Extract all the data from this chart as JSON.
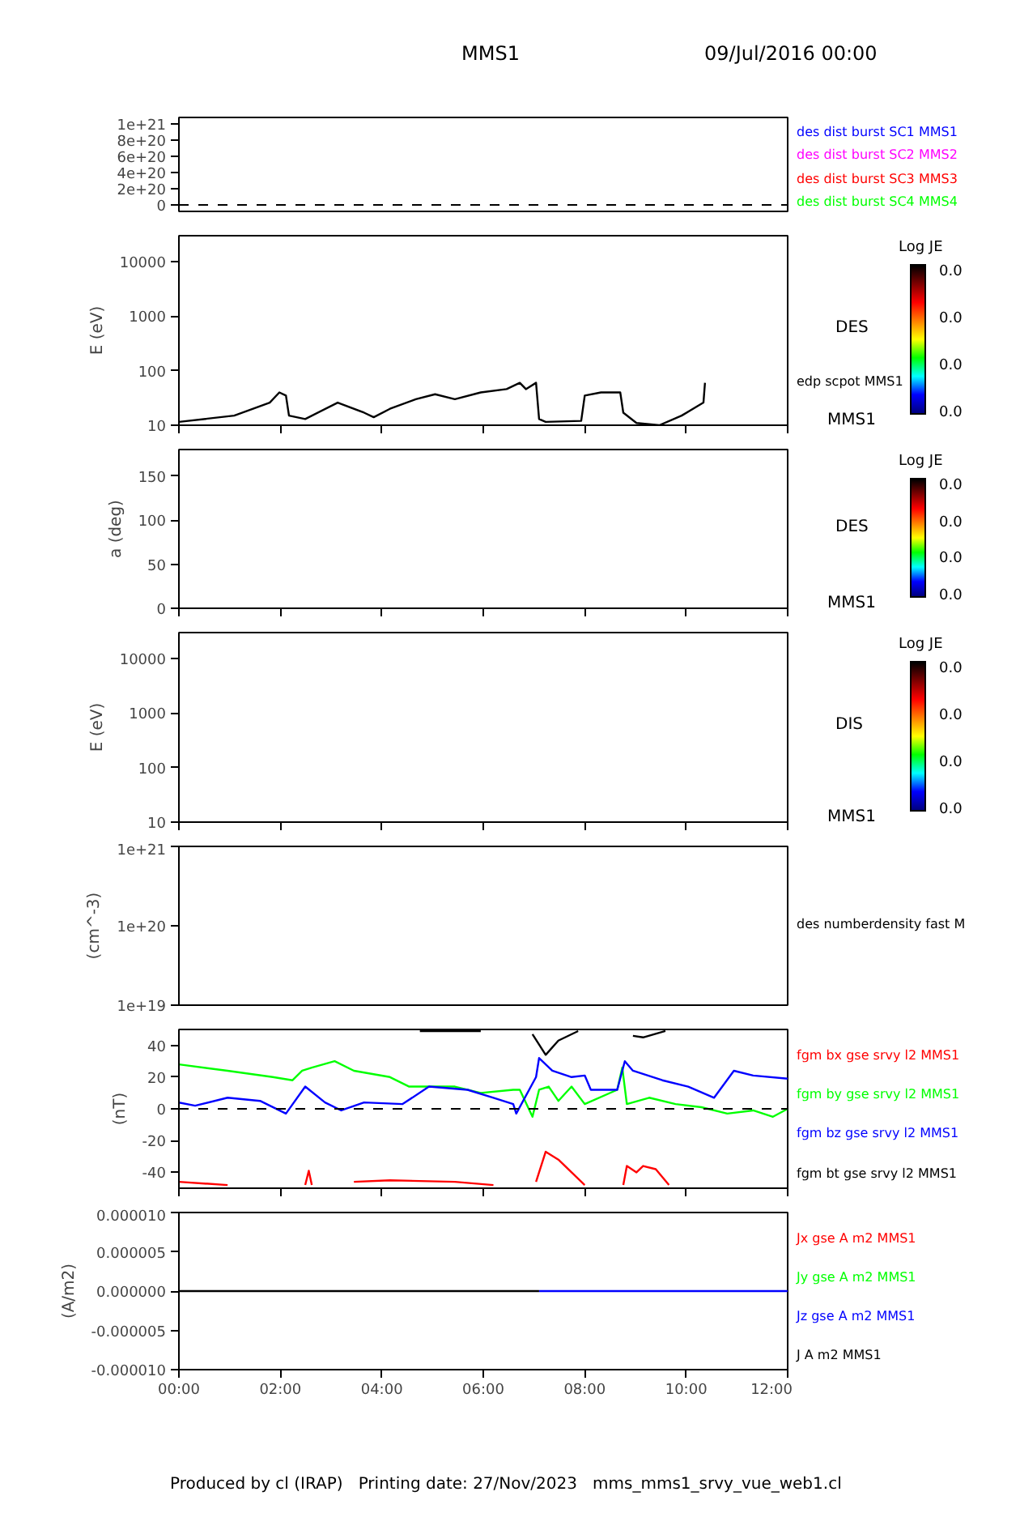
{
  "chart_data": [
    {
      "type": "line",
      "title": "MMS1",
      "subtitle": "09/Jul/2016 00:00",
      "ylim": [
        -8e+19,
        1.08e+21
      ],
      "yticks": [
        0,
        {
          "value": 2e+20,
          "label": "2e+20"
        },
        {
          "value": 4e+20,
          "label": "4e+20"
        },
        {
          "value": 6e+20,
          "label": "6e+20"
        },
        {
          "value": 8e+20,
          "label": "8e+20"
        },
        {
          "value": 1e+21,
          "label": "1e+21"
        }
      ],
      "tick_labels": "y",
      "ref_lines": [
        {
          "axis": "y",
          "value": 0,
          "line_style": "dashed",
          "color": "#000000"
        }
      ],
      "series": [
        {
          "name": "des dist burst SC1 MMS1",
          "color": "#0000ff"
        },
        {
          "name": "des dist burst SC2 MMS2",
          "color": "#ff00ff"
        },
        {
          "name": "des dist burst SC3 MMS3",
          "color": "#ff0000"
        },
        {
          "name": "des dist burst SC4 MMS4",
          "color": "#00ff00"
        }
      ]
    },
    {
      "type": "line",
      "ylabel": "E (eV)",
      "log": "y",
      "xlim": [
        0,
        12
      ],
      "xticks": [
        {
          "value": 0,
          "label": null
        },
        {
          "value": 2,
          "label": null
        },
        {
          "value": 4,
          "label": null
        },
        {
          "value": 6,
          "label": null
        },
        {
          "value": 8,
          "label": null
        },
        {
          "value": 10,
          "label": null
        },
        {
          "value": 12,
          "label": null
        }
      ],
      "ylim": [
        10,
        30000
      ],
      "yticks": [
        10,
        100,
        1000,
        10000
      ],
      "tick_labels": "y",
      "clabel": "Log JE",
      "annotations": [
        "DES",
        "MMS1",
        "0.0",
        "0.0",
        "0.0",
        "0.0"
      ],
      "series": [
        {
          "name": "edp scpot MMS1",
          "color": "#000000",
          "x": [
            0,
            1.09,
            1.79,
            1.98,
            2.11,
            2.17,
            2.49,
            3.13,
            3.65,
            3.84,
            4.16,
            4.67,
            5.05,
            5.44,
            5.95,
            6.46,
            6.72,
            6.84,
            7.04,
            7.1,
            7.23,
            7.93,
            8.0,
            8.32,
            8.7,
            8.76,
            9.02,
            9.47,
            9.91,
            10.34,
            10.37
          ],
          "values": [
            11.5,
            15,
            26,
            40,
            35,
            15,
            13,
            26,
            17,
            14,
            20,
            30,
            37,
            30,
            40,
            46,
            60,
            46,
            60,
            13,
            11.5,
            12,
            35,
            40,
            40,
            17,
            11,
            10,
            15,
            26,
            60
          ]
        }
      ]
    },
    {
      "type": "line",
      "ylabel": "a (deg)",
      "xlim": [
        0,
        12
      ],
      "xticks": [
        {
          "value": 0,
          "label": null
        },
        {
          "value": 2,
          "label": null
        },
        {
          "value": 4,
          "label": null
        },
        {
          "value": 6,
          "label": null
        },
        {
          "value": 8,
          "label": null
        },
        {
          "value": 10,
          "label": null
        },
        {
          "value": 12,
          "label": null
        }
      ],
      "ylim": [
        0,
        180
      ],
      "yticks": [
        0,
        50,
        100,
        150
      ],
      "tick_labels": "y",
      "clabel": "Log JE",
      "annotations": [
        "DES",
        "MMS1",
        "0.0",
        "0.0",
        "0.0",
        "0.0"
      ]
    },
    {
      "type": "line",
      "ylabel": "E (eV)",
      "log": "y",
      "xlim": [
        0,
        12
      ],
      "xticks": [
        {
          "value": 0,
          "label": null
        },
        {
          "value": 2,
          "label": null
        },
        {
          "value": 4,
          "label": null
        },
        {
          "value": 6,
          "label": null
        },
        {
          "value": 8,
          "label": null
        },
        {
          "value": 10,
          "label": null
        },
        {
          "value": 12,
          "label": null
        }
      ],
      "ylim": [
        10,
        30000
      ],
      "yticks": [
        10,
        100,
        1000,
        10000
      ],
      "tick_labels": "y",
      "clabel": "Log JE",
      "annotations": [
        "DIS",
        "MMS1",
        "0.0",
        "0.0",
        "0.0",
        "0.0"
      ]
    },
    {
      "type": "line",
      "ylabel": "(cm^-3)",
      "log": "y",
      "ylim": [
        1e+19,
        1e+21
      ],
      "yticks": [
        {
          "value": 1e+19,
          "label": "1e+19"
        },
        {
          "value": 1e+20,
          "label": "1e+20"
        },
        {
          "value": 1e+21,
          "label": "1e+21"
        }
      ],
      "tick_labels": "y",
      "series": [
        {
          "name": "des numberdensity fast M",
          "color": "#000000"
        }
      ]
    },
    {
      "type": "line",
      "ylabel": "(nT)",
      "xlim": [
        0,
        12
      ],
      "xticks": [
        {
          "value": 0,
          "label": null
        },
        {
          "value": 2,
          "label": null
        },
        {
          "value": 4,
          "label": null
        },
        {
          "value": 6,
          "label": null
        },
        {
          "value": 8,
          "label": null
        },
        {
          "value": 10,
          "label": null
        },
        {
          "value": 12,
          "label": null
        }
      ],
      "ylim": [
        -50,
        50
      ],
      "yticks": [
        -40,
        -20,
        0,
        20,
        40
      ],
      "tick_labels": "y",
      "ref_lines": [
        {
          "axis": "y",
          "value": 0,
          "line_style": "dashed",
          "color": "#000000"
        }
      ],
      "series": [
        {
          "name": "fgm bx gse srvy l2 MMS1",
          "color": "#ff0000",
          "x": [
            0,
            0.96,
            1.0,
            2.49,
            2.56,
            2.62,
            2.7,
            3.45,
            4.16,
            5.44,
            6.2,
            6.3,
            7.04,
            7.23,
            7.48,
            7.74,
            8.0,
            8.05,
            8.76,
            8.83,
            9.02,
            9.15,
            9.4,
            9.66
          ],
          "values": [
            -46,
            -48,
            null,
            -48,
            -39,
            -48,
            null,
            -46,
            -45,
            -46,
            -48,
            null,
            -46,
            -27,
            -32,
            -40,
            -48,
            null,
            -48,
            -36,
            -40,
            -36,
            -38,
            -48
          ]
        },
        {
          "name": "fgm by gse srvy l2 MMS1",
          "color": "#00ff00",
          "x": [
            0,
            0.96,
            1.85,
            2.24,
            2.43,
            2.62,
            3.07,
            3.45,
            4.16,
            4.54,
            5.44,
            5.95,
            6.59,
            6.72,
            6.97,
            7.1,
            7.29,
            7.48,
            7.74,
            8.0,
            8.64,
            8.74,
            8.83,
            9.27,
            9.79,
            10.3,
            10.81,
            11.32,
            11.71,
            12
          ],
          "values": [
            28,
            24,
            20,
            18,
            24,
            26,
            30,
            24,
            20,
            14,
            14,
            10,
            12,
            12,
            -5,
            12,
            14,
            5,
            14,
            3,
            12,
            26,
            3,
            7,
            3,
            1,
            -3,
            -1,
            -5,
            0
          ]
        },
        {
          "name": "fgm bz gse srvy l2 MMS1",
          "color": "#0000ff",
          "x": [
            0,
            0.32,
            0.96,
            1.6,
            2.11,
            2.49,
            2.88,
            3.2,
            3.65,
            4.41,
            4.93,
            5.69,
            6.2,
            6.59,
            6.65,
            7.04,
            7.1,
            7.36,
            7.74,
            8.0,
            8.12,
            8.64,
            8.79,
            8.95,
            9.53,
            10.04,
            10.55,
            10.94,
            11.32,
            12
          ],
          "values": [
            4,
            2,
            7,
            5,
            -3,
            14,
            4,
            -1,
            4,
            3,
            14,
            12,
            7,
            3,
            -3,
            20,
            32,
            24,
            20,
            21,
            12,
            12,
            30,
            24,
            18,
            14,
            7,
            24,
            21,
            19
          ]
        },
        {
          "name": "fgm bt gse srvy l2 MMS1",
          "color": "#000000",
          "x": [
            4.75,
            5.95,
            6.05,
            6.97,
            7.23,
            7.48,
            7.87,
            7.95,
            8.95,
            9.15,
            9.59
          ],
          "values": [
            49,
            49,
            null,
            47,
            34,
            43,
            49,
            null,
            46,
            45,
            49
          ]
        }
      ]
    },
    {
      "type": "line",
      "ylabel": "(A/m2)",
      "xlim": [
        0,
        12
      ],
      "xticks": [
        {
          "value": 0,
          "label": "00:00"
        },
        {
          "value": 2,
          "label": "02:00"
        },
        {
          "value": 4,
          "label": "04:00"
        },
        {
          "value": 6,
          "label": "06:00"
        },
        {
          "value": 8,
          "label": "08:00"
        },
        {
          "value": 10,
          "label": "10:00"
        },
        {
          "value": 12,
          "label": "12:00"
        }
      ],
      "ylim": [
        -1e-05,
        1e-05
      ],
      "yticks": [
        {
          "value": -1e-05,
          "label": "-0.000010"
        },
        {
          "value": -5e-06,
          "label": "-0.000005"
        },
        {
          "value": 0,
          "label": "0.000000"
        },
        {
          "value": 5e-06,
          "label": "0.000005"
        },
        {
          "value": 1e-05,
          "label": "0.000010"
        }
      ],
      "annotations": [
        "Produced by cl (IRAP)   Printing date: 27/Nov/2023   mms_mms1_srvy_vue_web1.cl"
      ],
      "series": [
        {
          "name": "Jx gse A m2 MMS1",
          "color": "#ff0000"
        },
        {
          "name": "Jy gse A m2 MMS1",
          "color": "#00ff00"
        },
        {
          "name": "Jz gse A m2 MMS1",
          "color": "#0000ff",
          "x": [
            7.1,
            12
          ],
          "values": [
            0,
            0
          ]
        },
        {
          "name": "J A m2 MMS1",
          "color": "#000000",
          "x": [
            0,
            7.1
          ],
          "values": [
            0,
            0
          ]
        }
      ]
    }
  ]
}
